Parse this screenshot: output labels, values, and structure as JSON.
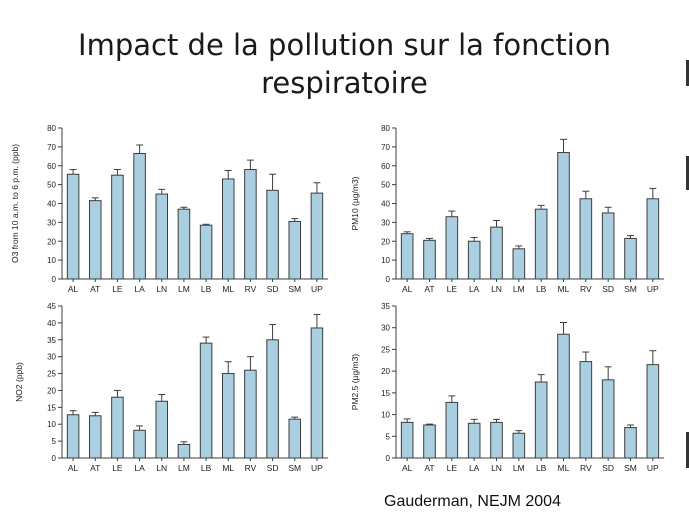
{
  "slide": {
    "title_line1": "Impact de la pollution sur la fonction",
    "title_line2": "respiratoire",
    "citation": "Gauderman, NEJM 2004"
  },
  "colors": {
    "bar_fill": "#a9cfe0",
    "bar_stroke": "#3d3d3d",
    "axis": "#3d3d3d",
    "text": "#222222"
  },
  "chart_data": [
    {
      "type": "bar",
      "categories": [
        "AL",
        "AT",
        "LE",
        "LA",
        "LN",
        "LM",
        "LB",
        "ML",
        "RV",
        "SD",
        "SM",
        "UP"
      ],
      "values": [
        55.5,
        41.5,
        55,
        66.5,
        45,
        37,
        28.5,
        53,
        58,
        47,
        30.5,
        45.5
      ],
      "errors": [
        2.5,
        1.5,
        3,
        4.5,
        2.5,
        1,
        0.5,
        4.5,
        5,
        8.5,
        1.5,
        5.5
      ],
      "ylabel": "O3 from 10 a.m. to 6 p.m. (ppb)",
      "ylim": [
        0,
        80
      ],
      "yticks": [
        0,
        10,
        20,
        30,
        40,
        50,
        60,
        70,
        80
      ]
    },
    {
      "type": "bar",
      "categories": [
        "AL",
        "AT",
        "LE",
        "LA",
        "LN",
        "LM",
        "LB",
        "ML",
        "RV",
        "SD",
        "SM",
        "UP"
      ],
      "values": [
        24,
        20.5,
        33,
        20,
        27.5,
        16,
        37,
        67,
        42.5,
        35,
        21.5,
        42.5
      ],
      "errors": [
        1,
        1,
        3,
        2,
        3.5,
        1.5,
        2,
        7,
        4,
        3,
        1.5,
        5.5
      ],
      "ylabel": "PM10 (µg/m3)",
      "ylim": [
        0,
        80
      ],
      "yticks": [
        0,
        10,
        20,
        30,
        40,
        50,
        60,
        70,
        80
      ]
    },
    {
      "type": "bar",
      "categories": [
        "AL",
        "AT",
        "LE",
        "LA",
        "LN",
        "LM",
        "LB",
        "ML",
        "RV",
        "SD",
        "SM",
        "UP"
      ],
      "values": [
        12.8,
        12.5,
        18,
        8.2,
        16.8,
        4,
        34,
        25,
        26,
        35,
        11.5,
        38.5
      ],
      "errors": [
        1.2,
        1,
        2,
        1.3,
        2,
        0.8,
        1.8,
        3.5,
        4,
        4.5,
        0.6,
        4
      ],
      "ylabel": "NO2 (ppb)",
      "ylim": [
        0,
        45
      ],
      "yticks": [
        0,
        5,
        10,
        15,
        20,
        25,
        30,
        35,
        40,
        45
      ]
    },
    {
      "type": "bar",
      "categories": [
        "AL",
        "AT",
        "LE",
        "LA",
        "LN",
        "LM",
        "LB",
        "ML",
        "RV",
        "SD",
        "SM",
        "UP"
      ],
      "values": [
        8.2,
        7.6,
        12.8,
        8,
        8.2,
        5.7,
        17.5,
        28.5,
        22.2,
        18,
        7,
        21.5
      ],
      "errors": [
        0.8,
        0.2,
        1.5,
        0.9,
        0.7,
        0.6,
        1.7,
        2.7,
        2.2,
        3,
        0.6,
        3.2
      ],
      "ylabel": "PM2.5 (µg/m3)",
      "ylim": [
        0,
        35
      ],
      "yticks": [
        0,
        5,
        10,
        15,
        20,
        25,
        30,
        35
      ]
    }
  ]
}
